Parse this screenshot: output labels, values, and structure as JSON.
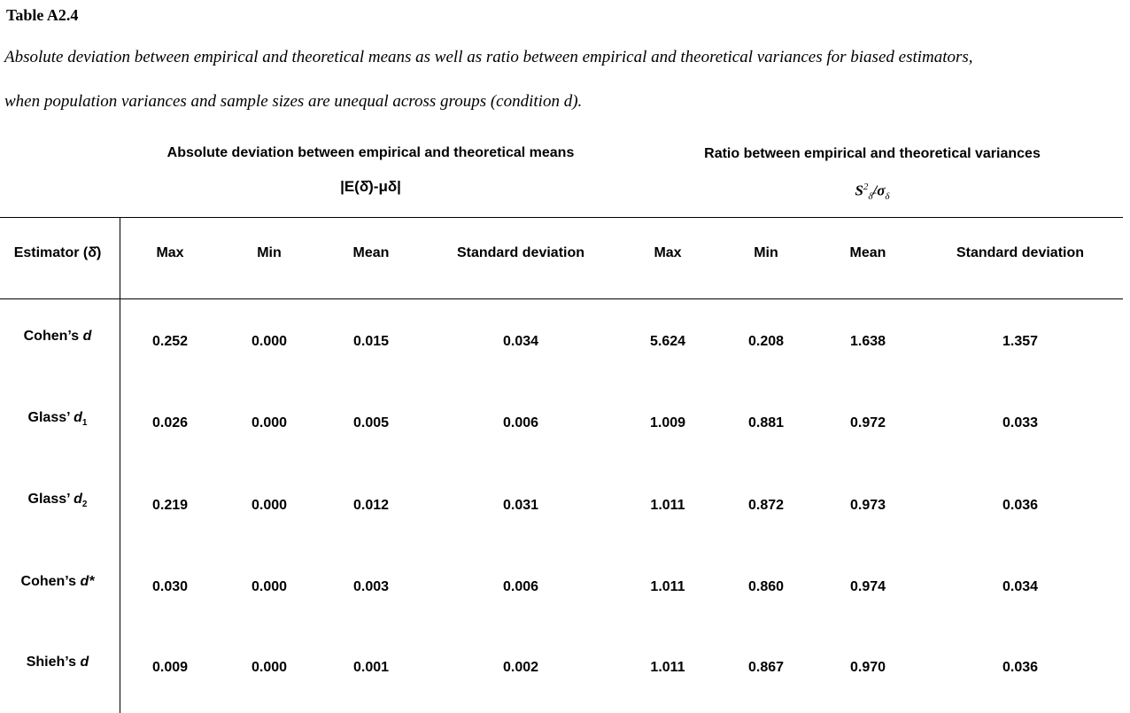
{
  "table_number": "Table A2.4",
  "caption_line1": "Absolute deviation between empirical and theoretical means as well as ratio between empirical and theoretical variances for biased estimators,",
  "caption_line2": "when population variances and sample sizes are unequal across groups (condition d).",
  "groups": {
    "means_title": "Absolute deviation between empirical and theoretical means",
    "means_formula": "|E(δ̂)-μδ|",
    "variances_title": "Ratio between empirical and theoretical variances",
    "variances_formula_base": "S",
    "variances_formula_sup": "2",
    "variances_formula_sub": "δ̂",
    "variances_formula_rest": "/σ",
    "variances_formula_sub2": "δ"
  },
  "columns": [
    "Estimator (δ̂)",
    "Max",
    "Min",
    "Mean",
    "Standard deviation",
    "Max",
    "Min",
    "Mean",
    "Standard deviation"
  ],
  "rows": [
    {
      "label_prefix": "Cohen’s ",
      "label_italic": "d",
      "label_sub": "",
      "values": [
        "0.252",
        "0.000",
        "0.015",
        "0.034",
        "5.624",
        "0.208",
        "1.638",
        "1.357"
      ]
    },
    {
      "label_prefix": "Glass’ ",
      "label_italic": "d",
      "label_sub": "1",
      "values": [
        "0.026",
        "0.000",
        "0.005",
        "0.006",
        "1.009",
        "0.881",
        "0.972",
        "0.033"
      ]
    },
    {
      "label_prefix": "Glass’ ",
      "label_italic": "d",
      "label_sub": "2",
      "values": [
        "0.219",
        "0.000",
        "0.012",
        "0.031",
        "1.011",
        "0.872",
        "0.973",
        "0.036"
      ]
    },
    {
      "label_prefix": "Cohen’s ",
      "label_italic": "d*",
      "label_sub": "",
      "values": [
        "0.030",
        "0.000",
        "0.003",
        "0.006",
        "1.011",
        "0.860",
        "0.974",
        "0.034"
      ]
    },
    {
      "label_prefix": "Shieh’s ",
      "label_italic": "d",
      "label_sub": "",
      "values": [
        "0.009",
        "0.000",
        "0.001",
        "0.002",
        "1.011",
        "0.867",
        "0.970",
        "0.036"
      ]
    }
  ]
}
